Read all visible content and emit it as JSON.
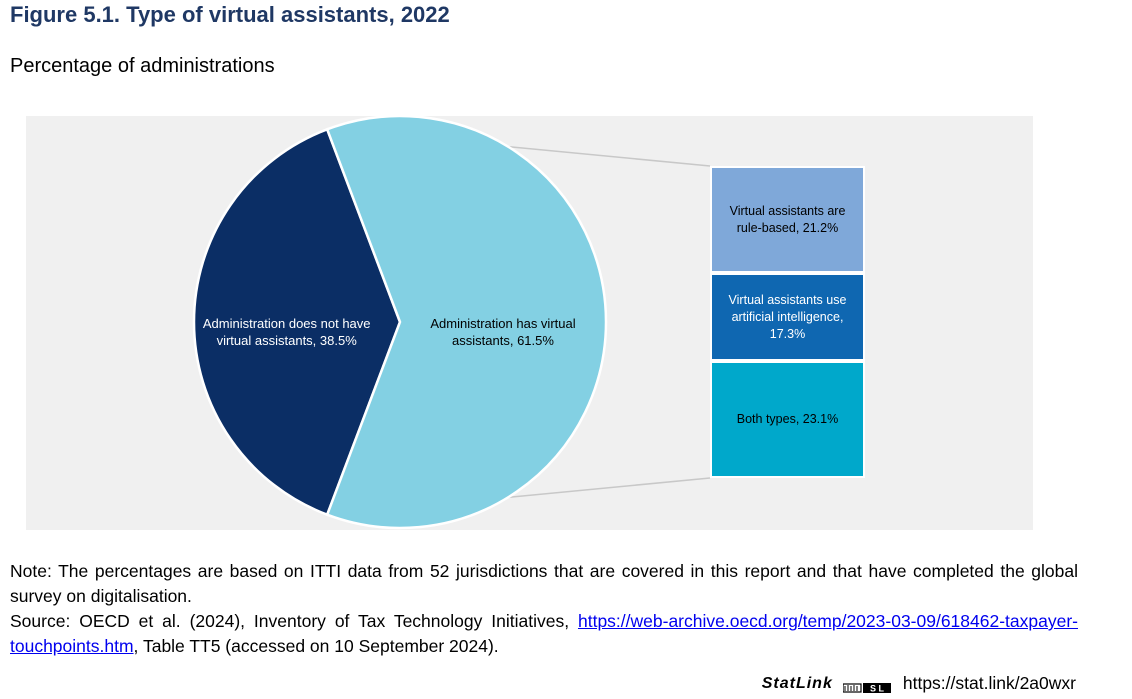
{
  "header": {
    "title": "Figure 5.1. Type of virtual assistants, 2022",
    "subtitle": "Percentage of administrations"
  },
  "chart_data": {
    "type": "pie",
    "pie": {
      "slices": [
        {
          "label": "Administration does not have virtual assistants, 38.5%",
          "value": 38.5,
          "color": "#0b2e65"
        },
        {
          "label": "Administration has virtual assistants, 61.5%",
          "value": 61.5,
          "color": "#83d0e3"
        }
      ]
    },
    "breakdown": {
      "of": "Administration has virtual assistants",
      "segments": [
        {
          "label": "Virtual assistants are rule-based, 21.2%",
          "value": 21.2,
          "color": "#7fa8d9"
        },
        {
          "label": "Virtual assistants use artificial intelligence, 17.3%",
          "value": 17.3,
          "color": "#0f67b1"
        },
        {
          "label": "Both types, 23.1%",
          "value": 23.1,
          "color": "#00a8cb"
        }
      ]
    }
  },
  "footer": {
    "note": "Note: The percentages are based on ITTI data from 52 jurisdictions that are covered in this report and that have completed the global survey on digitalisation.",
    "source_prefix": "Source: OECD et al. (2024), Inventory of Tax Technology Initiatives, ",
    "source_link": "https://web-archive.oecd.org/temp/2023-03-09/618462-taxpayer-touchpoints.htm",
    "source_suffix": ", Table TT5 (accessed on 10 September 2024).",
    "statlink_brand": "StatLink",
    "statlink_url": "https://stat.link/2a0wxr"
  }
}
